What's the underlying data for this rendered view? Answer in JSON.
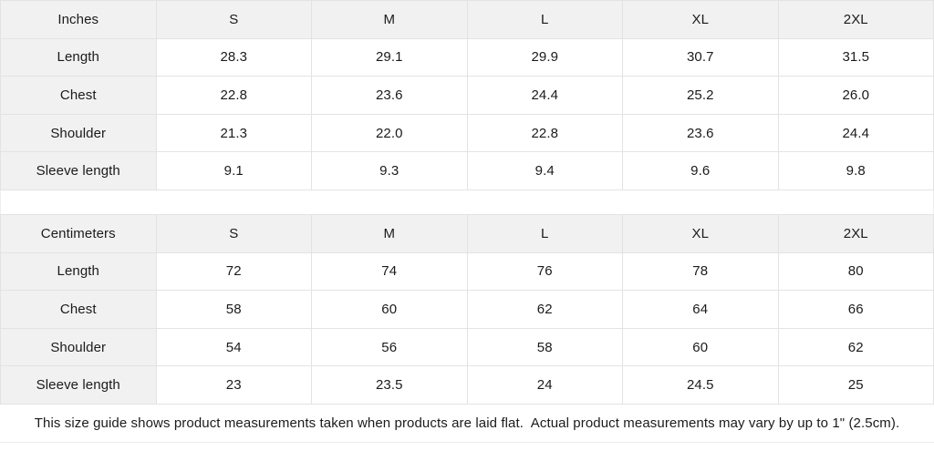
{
  "colors": {
    "header_bg": "#f1f1f1",
    "cell_bg": "#ffffff",
    "border": "#e3e3e3",
    "text": "#1b1b1b"
  },
  "tables": [
    {
      "unit_label": "Inches",
      "sizes": [
        "S",
        "M",
        "L",
        "XL",
        "2XL"
      ],
      "rows": [
        {
          "label": "Length",
          "values": [
            "28.3",
            "29.1",
            "29.9",
            "30.7",
            "31.5"
          ]
        },
        {
          "label": "Chest",
          "values": [
            "22.8",
            "23.6",
            "24.4",
            "25.2",
            "26.0"
          ]
        },
        {
          "label": "Shoulder",
          "values": [
            "21.3",
            "22.0",
            "22.8",
            "23.6",
            "24.4"
          ]
        },
        {
          "label": "Sleeve length",
          "values": [
            "9.1",
            "9.3",
            "9.4",
            "9.6",
            "9.8"
          ]
        }
      ]
    },
    {
      "unit_label": "Centimeters",
      "sizes": [
        "S",
        "M",
        "L",
        "XL",
        "2XL"
      ],
      "rows": [
        {
          "label": "Length",
          "values": [
            "72",
            "74",
            "76",
            "78",
            "80"
          ]
        },
        {
          "label": "Chest",
          "values": [
            "58",
            "60",
            "62",
            "64",
            "66"
          ]
        },
        {
          "label": "Shoulder",
          "values": [
            "54",
            "56",
            "58",
            "60",
            "62"
          ]
        },
        {
          "label": "Sleeve length",
          "values": [
            "23",
            "23.5",
            "24",
            "24.5",
            "25"
          ]
        }
      ]
    }
  ],
  "footer": {
    "note": "This size guide shows product measurements taken when products are laid flat.  Actual product measurements may vary by up to 1\" (2.5cm)."
  },
  "chart_data": [
    {
      "type": "table",
      "title": "Inches",
      "columns": [
        "Inches",
        "S",
        "M",
        "L",
        "XL",
        "2XL"
      ],
      "rows": [
        [
          "Length",
          28.3,
          29.1,
          29.9,
          30.7,
          31.5
        ],
        [
          "Chest",
          22.8,
          23.6,
          24.4,
          25.2,
          26.0
        ],
        [
          "Shoulder",
          21.3,
          22.0,
          22.8,
          23.6,
          24.4
        ],
        [
          "Sleeve length",
          9.1,
          9.3,
          9.4,
          9.6,
          9.8
        ]
      ]
    },
    {
      "type": "table",
      "title": "Centimeters",
      "columns": [
        "Centimeters",
        "S",
        "M",
        "L",
        "XL",
        "2XL"
      ],
      "rows": [
        [
          "Length",
          72,
          74,
          76,
          78,
          80
        ],
        [
          "Chest",
          58,
          60,
          62,
          64,
          66
        ],
        [
          "Shoulder",
          54,
          56,
          58,
          60,
          62
        ],
        [
          "Sleeve length",
          23,
          23.5,
          24,
          24.5,
          25
        ]
      ]
    }
  ]
}
